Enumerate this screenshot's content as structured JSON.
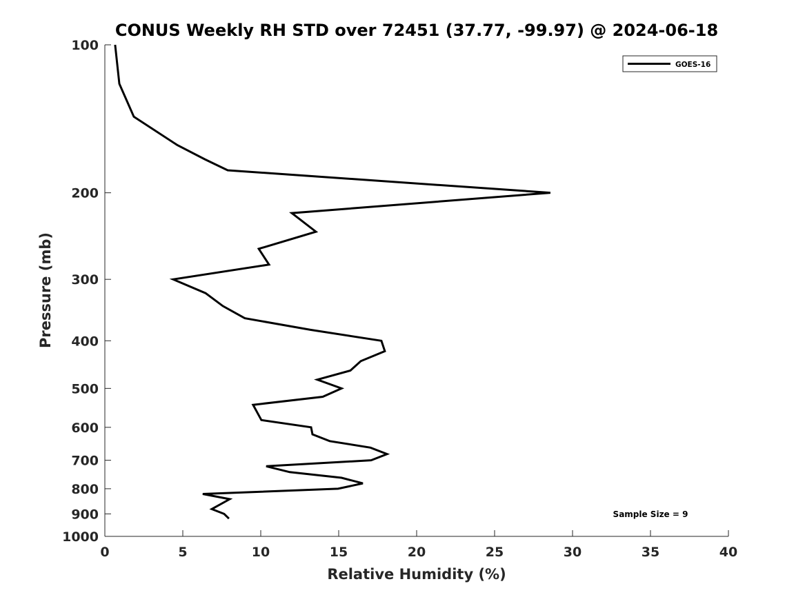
{
  "chart_data": {
    "type": "line",
    "title": "CONUS Weekly RH STD over 72451 (37.77, -99.97) @ 2024-06-18",
    "xlabel": "Relative Humidity (%)",
    "ylabel": "Pressure (mb)",
    "xlim": [
      0,
      40
    ],
    "ylim": [
      100,
      1000
    ],
    "yscale": "log",
    "y_reversed": true,
    "grid": false,
    "x_ticks": [
      0,
      5,
      10,
      15,
      20,
      25,
      30,
      35,
      40
    ],
    "x_tick_labels": [
      "0",
      "5",
      "10",
      "15",
      "20",
      "25",
      "30",
      "35",
      "40"
    ],
    "y_ticks": [
      100,
      200,
      300,
      400,
      500,
      600,
      700,
      800,
      900,
      1000
    ],
    "y_tick_labels": [
      "100",
      "200",
      "300",
      "400",
      "500",
      "600",
      "700",
      "800",
      "900",
      "1000"
    ],
    "legend": {
      "placement": "top-right",
      "entries": [
        "GOES-16"
      ]
    },
    "annotation": "Sample Size = 9",
    "series": [
      {
        "name": "GOES-16",
        "color": "#000000",
        "x": [
          0.66,
          0.93,
          1.86,
          4.65,
          6.42,
          7.88,
          28.58,
          11.99,
          13.54,
          9.87,
          10.53,
          4.38,
          6.46,
          7.57,
          8.98,
          13.19,
          17.74,
          17.96,
          16.42,
          15.75,
          13.63,
          15.18,
          13.98,
          9.51,
          10.04,
          13.23,
          13.32,
          14.42,
          17.04,
          18.1,
          17.08,
          10.35,
          11.86,
          15.18,
          16.55,
          14.96,
          6.28,
          8.01,
          6.86,
          7.65,
          7.96
        ],
        "y": [
          100,
          120,
          140,
          160,
          171,
          180,
          200,
          220,
          240,
          260,
          280,
          300,
          320,
          340,
          360,
          380,
          400,
          420,
          440,
          460,
          480,
          500,
          520,
          540,
          580,
          600,
          620,
          640,
          660,
          680,
          700,
          720,
          740,
          760,
          780,
          800,
          820,
          840,
          880,
          900,
          920
        ]
      }
    ]
  }
}
